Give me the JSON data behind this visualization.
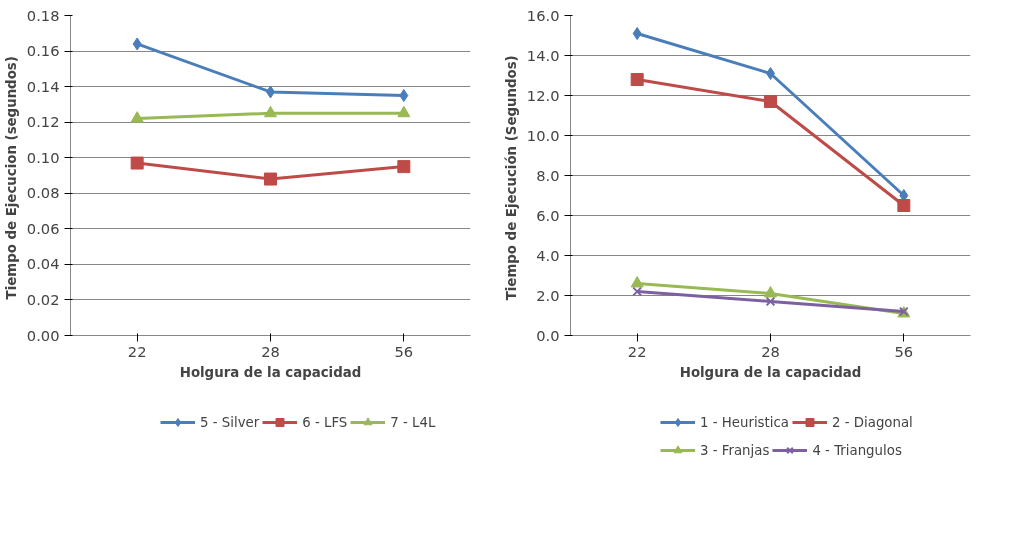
{
  "chart_data": [
    {
      "type": "line",
      "xlabel": "Holgura de la capacidad",
      "ylabel": "Tiempo de Ejecucion  (segundos)",
      "categories": [
        "22",
        "28",
        "56"
      ],
      "series": [
        {
          "name": "5 - Silver",
          "color": "#4a7ebb",
          "marker": "diamond",
          "values": [
            0.164,
            0.137,
            0.135
          ]
        },
        {
          "name": "6 - LFS",
          "color": "#be4b48",
          "marker": "square",
          "values": [
            0.097,
            0.088,
            0.095
          ]
        },
        {
          "name": "7 - L4L",
          "color": "#98b954",
          "marker": "triangle",
          "values": [
            0.122,
            0.125,
            0.125
          ]
        }
      ],
      "ylim": [
        0,
        0.18
      ],
      "yticks": [
        {
          "value": 0,
          "label": "0.00"
        },
        {
          "value": 0.02,
          "label": "0.02"
        },
        {
          "value": 0.04,
          "label": "0.04"
        },
        {
          "value": 0.06,
          "label": "0.06"
        },
        {
          "value": 0.08,
          "label": "0.08"
        },
        {
          "value": 0.1,
          "label": "0.10"
        },
        {
          "value": 0.12,
          "label": "0.12"
        },
        {
          "value": 0.14,
          "label": "0.14"
        },
        {
          "value": 0.16,
          "label": "0.16"
        },
        {
          "value": 0.18,
          "label": "0.18"
        }
      ],
      "grid": "y",
      "legend": "bottom",
      "line_style": "solid"
    },
    {
      "type": "line",
      "xlabel": "Holgura de la capacidad",
      "ylabel": "Tiempo de Ejecución  (Segundos)",
      "categories": [
        "22",
        "28",
        "56"
      ],
      "series": [
        {
          "name": "1 - Heuristica",
          "color": "#4a7ebb",
          "marker": "diamond",
          "values": [
            15.1,
            13.1,
            7.0
          ]
        },
        {
          "name": "2 - Diagonal",
          "color": "#be4b48",
          "marker": "square",
          "values": [
            12.8,
            11.7,
            6.5
          ]
        },
        {
          "name": "3 - Franjas",
          "color": "#98b954",
          "marker": "triangle",
          "values": [
            2.6,
            2.1,
            1.1
          ]
        },
        {
          "name": "4 - Triangulos",
          "color": "#7d60a0",
          "marker": "cross",
          "values": [
            2.2,
            1.7,
            1.2
          ]
        }
      ],
      "ylim": [
        0,
        16
      ],
      "yticks": [
        {
          "value": 0,
          "label": "0.0"
        },
        {
          "value": 2,
          "label": "2.0"
        },
        {
          "value": 4,
          "label": "4.0"
        },
        {
          "value": 6,
          "label": "6.0"
        },
        {
          "value": 8,
          "label": "8.0"
        },
        {
          "value": 10,
          "label": "10.0"
        },
        {
          "value": 12,
          "label": "12.0"
        },
        {
          "value": 14,
          "label": "14.0"
        },
        {
          "value": 16,
          "label": "16.0"
        }
      ],
      "grid": "y",
      "legend": "bottom",
      "line_style": "solid"
    }
  ]
}
